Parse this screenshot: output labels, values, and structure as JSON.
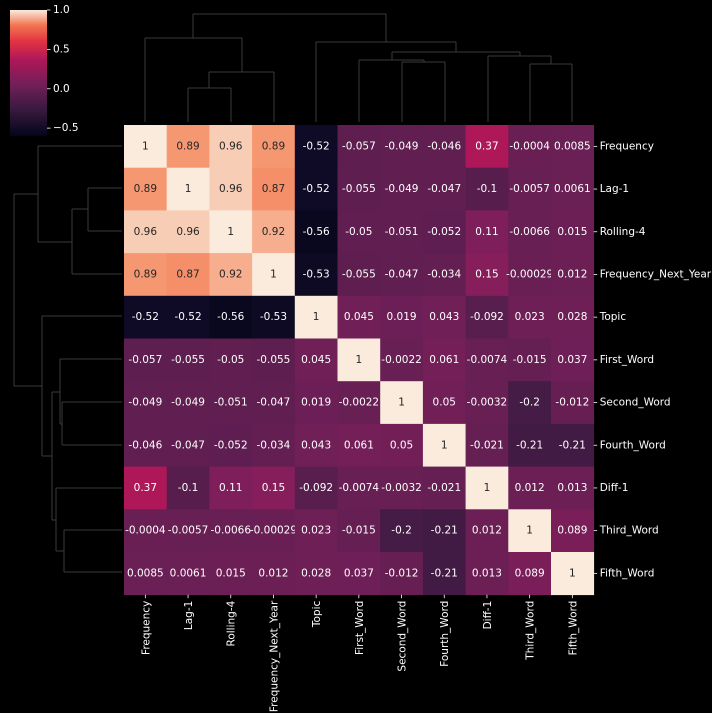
{
  "chart_data": {
    "type": "heatmap",
    "title": "",
    "row_labels": [
      "Frequency",
      "Lag-1",
      "Rolling-4",
      "Frequency_Next_Year",
      "Topic",
      "First_Word",
      "Second_Word",
      "Fourth_Word",
      "Diff-1",
      "Third_Word",
      "Fifth_Word"
    ],
    "col_labels": [
      "Frequency",
      "Lag-1",
      "Rolling-4",
      "Frequency_Next_Year",
      "Topic",
      "First_Word",
      "Second_Word",
      "Fourth_Word",
      "Diff-1",
      "Third_Word",
      "Fifth_Word"
    ],
    "values": [
      [
        1,
        0.89,
        0.96,
        0.89,
        -0.52,
        -0.057,
        -0.049,
        -0.046,
        0.37,
        -0.0004,
        0.0085
      ],
      [
        0.89,
        1,
        0.96,
        0.87,
        -0.52,
        -0.055,
        -0.049,
        -0.047,
        -0.1,
        -0.0057,
        0.0061
      ],
      [
        0.96,
        0.96,
        1,
        0.92,
        -0.56,
        -0.05,
        -0.051,
        -0.052,
        0.11,
        -0.0066,
        0.015
      ],
      [
        0.89,
        0.87,
        0.92,
        1,
        -0.53,
        -0.055,
        -0.047,
        -0.034,
        0.15,
        -0.00029,
        0.012
      ],
      [
        -0.52,
        -0.52,
        -0.56,
        -0.53,
        1,
        0.045,
        0.019,
        0.043,
        -0.092,
        0.023,
        0.028
      ],
      [
        -0.057,
        -0.055,
        -0.05,
        -0.055,
        0.045,
        1,
        -0.0022,
        0.061,
        -0.0074,
        -0.015,
        0.037
      ],
      [
        -0.049,
        -0.049,
        -0.051,
        -0.047,
        0.019,
        -0.0022,
        1,
        0.05,
        -0.0032,
        -0.2,
        -0.012
      ],
      [
        -0.046,
        -0.047,
        -0.052,
        -0.034,
        0.043,
        0.061,
        0.05,
        1,
        -0.021,
        -0.21,
        -0.21
      ],
      [
        0.37,
        -0.1,
        0.11,
        0.15,
        -0.092,
        -0.0074,
        -0.0032,
        -0.021,
        1,
        0.012,
        0.013
      ],
      [
        -0.0004,
        -0.0057,
        -0.0066,
        -0.00029,
        0.023,
        -0.015,
        -0.2,
        -0.21,
        0.012,
        1,
        0.089
      ],
      [
        0.0085,
        0.0061,
        0.015,
        0.012,
        0.028,
        0.037,
        -0.012,
        -0.21,
        0.013,
        0.089,
        1
      ]
    ],
    "value_labels": [
      [
        "1",
        "0.89",
        "0.96",
        "0.89",
        "-0.52",
        "-0.057",
        "-0.049",
        "-0.046",
        "0.37",
        "-0.0004",
        "0.0085"
      ],
      [
        "0.89",
        "1",
        "0.96",
        "0.87",
        "-0.52",
        "-0.055",
        "-0.049",
        "-0.047",
        "-0.1",
        "-0.0057",
        "0.0061"
      ],
      [
        "0.96",
        "0.96",
        "1",
        "0.92",
        "-0.56",
        "-0.05",
        "-0.051",
        "-0.052",
        "0.11",
        "-0.0066",
        "0.015"
      ],
      [
        "0.89",
        "0.87",
        "0.92",
        "1",
        "-0.53",
        "-0.055",
        "-0.047",
        "-0.034",
        "0.15",
        "-0.00029",
        "0.012"
      ],
      [
        "-0.52",
        "-0.52",
        "-0.56",
        "-0.53",
        "1",
        "0.045",
        "0.019",
        "0.043",
        "-0.092",
        "0.023",
        "0.028"
      ],
      [
        "-0.057",
        "-0.055",
        "-0.05",
        "-0.055",
        "0.045",
        "1",
        "-0.0022",
        "0.061",
        "-0.0074",
        "-0.015",
        "0.037"
      ],
      [
        "-0.049",
        "-0.049",
        "-0.051",
        "-0.047",
        "0.019",
        "-0.0022",
        "1",
        "0.05",
        "-0.0032",
        "-0.2",
        "-0.012"
      ],
      [
        "-0.046",
        "-0.047",
        "-0.052",
        "-0.034",
        "0.043",
        "0.061",
        "0.05",
        "1",
        "-0.021",
        "-0.21",
        "-0.21"
      ],
      [
        "0.37",
        "-0.1",
        "0.11",
        "0.15",
        "-0.092",
        "-0.0074",
        "-0.0032",
        "-0.021",
        "1",
        "0.012",
        "0.013"
      ],
      [
        "-0.0004",
        "-0.0057",
        "-0.0066",
        "-0.00029",
        "0.023",
        "-0.015",
        "-0.2",
        "-0.21",
        "0.012",
        "1",
        "0.089"
      ],
      [
        "0.0085",
        "0.0061",
        "0.015",
        "0.012",
        "0.028",
        "0.037",
        "-0.012",
        "-0.21",
        "0.013",
        "0.089",
        "1"
      ]
    ],
    "colorbar": {
      "range": [
        -0.6,
        1
      ],
      "ticks": [
        1,
        0.5,
        0,
        -0.5
      ],
      "tick_labels": [
        "1.0",
        "0.5",
        "0.0",
        "−0.5"
      ],
      "colormap": "rocket"
    },
    "dendrogram_rows": true,
    "dendrogram_cols": true,
    "background": "#000000",
    "text_light": "#ffffff",
    "text_dark": "#262626"
  }
}
